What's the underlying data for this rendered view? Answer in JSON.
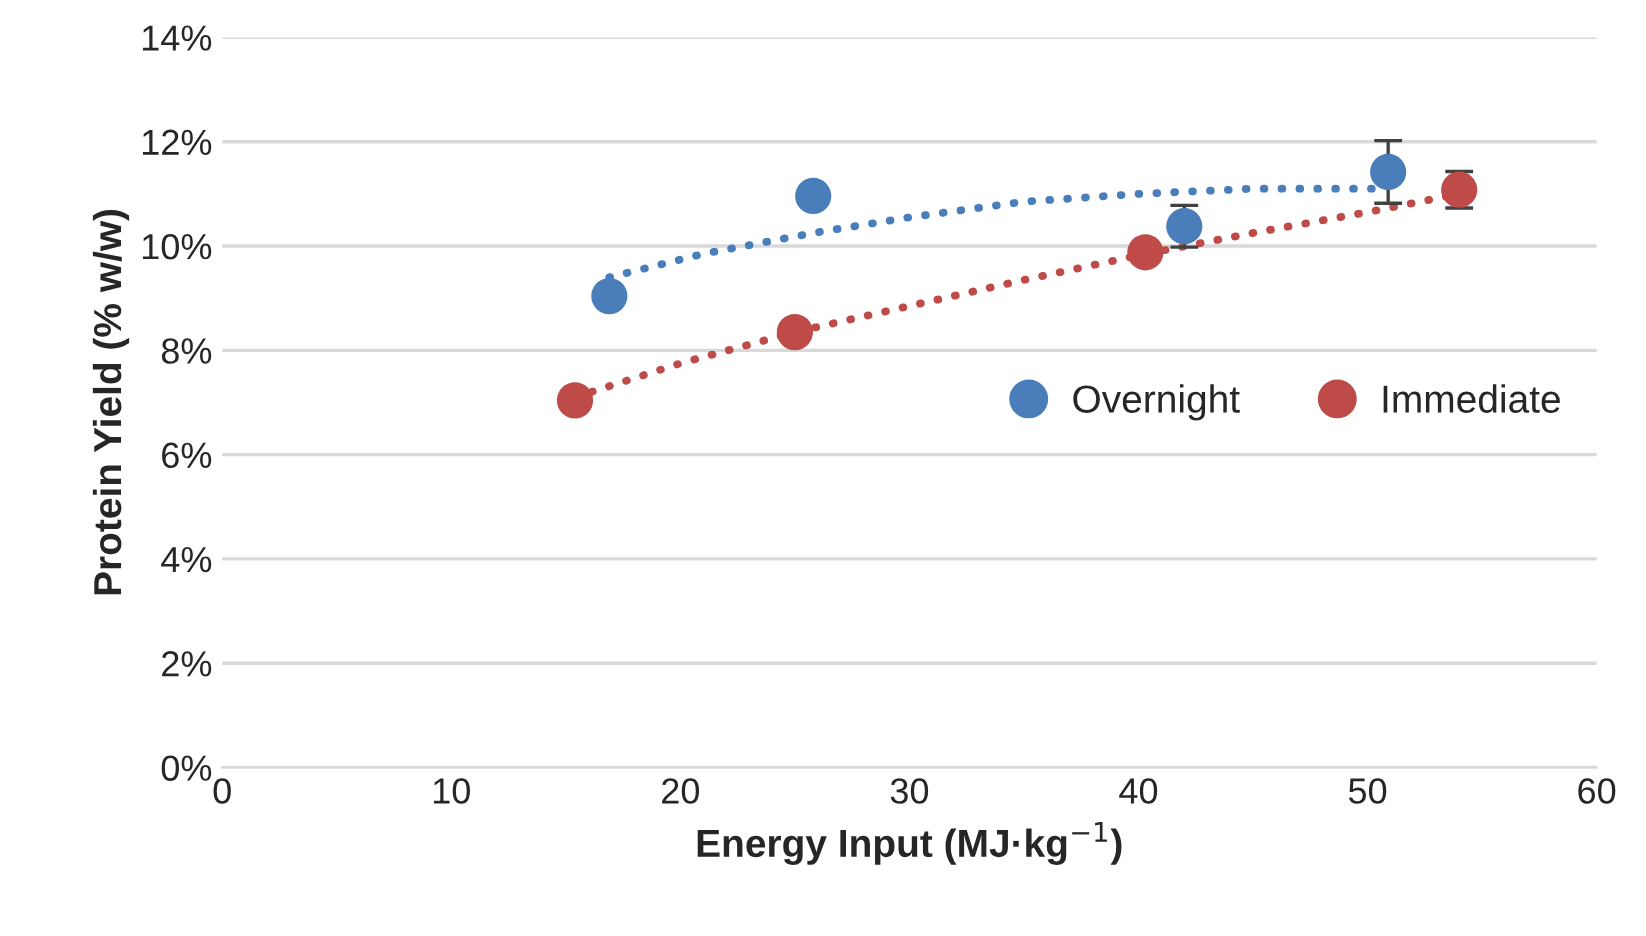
{
  "chart_data": {
    "type": "scatter",
    "xlabel": "Energy Input (MJ·kg$^{−1}$)",
    "ylabel": "Protein Yield (% w/w)",
    "xlim": [
      0,
      60
    ],
    "xticks": [
      0,
      10,
      20,
      30,
      40,
      50,
      60
    ],
    "ylim": [
      0,
      14
    ],
    "yticks": [
      {
        "value": 0,
        "label": "0%"
      },
      {
        "value": 2,
        "label": "2%"
      },
      {
        "value": 4,
        "label": "4%"
      },
      {
        "value": 6,
        "label": "6%"
      },
      {
        "value": 8,
        "label": "8%"
      },
      {
        "value": 10,
        "label": "10%"
      },
      {
        "value": 12,
        "label": "12%"
      },
      {
        "value": 14,
        "label": "14%"
      }
    ],
    "grid": "y",
    "legend": "center right",
    "marker": "circle",
    "series": [
      {
        "name": "Overnight",
        "color": "#4a7ebb",
        "x": [
          16.9,
          25.8,
          42.0,
          50.9
        ],
        "values": [
          9.04,
          10.96,
          10.38,
          11.42
        ],
        "errors": [
          null,
          null,
          0.4,
          0.6
        ]
      },
      {
        "name": "Immediate",
        "color": "#be4b48",
        "x": [
          15.4,
          25.0,
          40.3,
          54.0
        ],
        "values": [
          7.04,
          8.35,
          9.88,
          11.08
        ],
        "errors": [
          null,
          null,
          null,
          0.35
        ]
      },
      {
        "type": "line",
        "line_style": "dotted",
        "marker": "none",
        "color": "#4a7ebb",
        "x": [
          16.9,
          21,
          25.8,
          30,
          35,
          40,
          45,
          50.9
        ],
        "values": [
          9.4,
          9.85,
          10.25,
          10.55,
          10.85,
          11.0,
          11.1,
          11.1
        ]
      },
      {
        "type": "line",
        "line_style": "dotted",
        "marker": "none",
        "color": "#be4b48",
        "x": [
          15.4,
          20,
          25,
          30,
          35,
          40.3,
          45,
          50,
          54.0
        ],
        "values": [
          7.1,
          7.75,
          8.35,
          8.85,
          9.35,
          9.85,
          10.25,
          10.65,
          11.0
        ]
      }
    ]
  }
}
